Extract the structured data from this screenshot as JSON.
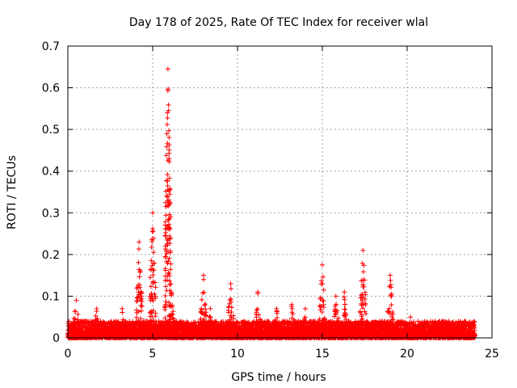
{
  "chart_data": {
    "type": "scatter",
    "title": "Day 178 of 2025, Rate Of TEC Index for receiver wlal",
    "xlabel": "GPS time / hours",
    "ylabel": "ROTI / TECUs",
    "xlim": [
      0,
      25
    ],
    "ylim": [
      0,
      0.7
    ],
    "xticks": [
      "0",
      "5",
      "10",
      "15",
      "20",
      "25"
    ],
    "yticks": [
      "0",
      "0.1",
      "0.2",
      "0.3",
      "0.4",
      "0.5",
      "0.6",
      "0.7"
    ],
    "grid": true,
    "marker": "+",
    "color": "#ff0000",
    "baseline": {
      "x_range": [
        0,
        24
      ],
      "typical_max": 0.04
    },
    "bursts": [
      {
        "x": 0.5,
        "peak": 0.09
      },
      {
        "x": 1.7,
        "peak": 0.07
      },
      {
        "x": 3.2,
        "peak": 0.07
      },
      {
        "x": 4.2,
        "peak": 0.23
      },
      {
        "x": 5.0,
        "peak": 0.3
      },
      {
        "x": 5.9,
        "peak": 0.645
      },
      {
        "x": 6.1,
        "peak": 0.11
      },
      {
        "x": 8.0,
        "peak": 0.15
      },
      {
        "x": 8.4,
        "peak": 0.07
      },
      {
        "x": 9.6,
        "peak": 0.13
      },
      {
        "x": 11.2,
        "peak": 0.11
      },
      {
        "x": 12.3,
        "peak": 0.07
      },
      {
        "x": 13.2,
        "peak": 0.08
      },
      {
        "x": 14.0,
        "peak": 0.07
      },
      {
        "x": 15.0,
        "peak": 0.175
      },
      {
        "x": 15.8,
        "peak": 0.1
      },
      {
        "x": 16.3,
        "peak": 0.11
      },
      {
        "x": 17.4,
        "peak": 0.21
      },
      {
        "x": 19.0,
        "peak": 0.15
      },
      {
        "x": 20.2,
        "peak": 0.05
      }
    ]
  }
}
